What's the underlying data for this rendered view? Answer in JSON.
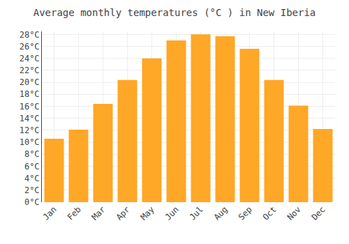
{
  "chart_data": {
    "type": "bar",
    "title": "Average monthly temperatures (°C ) in New Iberia",
    "categories": [
      "Jan",
      "Feb",
      "Mar",
      "Apr",
      "May",
      "Jun",
      "Jul",
      "Aug",
      "Sep",
      "Oct",
      "Nov",
      "Dec"
    ],
    "values": [
      10.6,
      12.1,
      16.4,
      20.4,
      24.0,
      27.0,
      28.0,
      27.7,
      25.6,
      20.4,
      16.1,
      12.2
    ],
    "color": "#FFA726",
    "ylim": [
      0,
      28.5
    ],
    "yticks": [
      {
        "value": 0,
        "label": "0°C"
      },
      {
        "value": 2,
        "label": "2°C"
      },
      {
        "value": 4,
        "label": "4°C"
      },
      {
        "value": 6,
        "label": "6°C"
      },
      {
        "value": 8,
        "label": "8°C"
      },
      {
        "value": 10,
        "label": "10°C"
      },
      {
        "value": 12,
        "label": "12°C"
      },
      {
        "value": 14,
        "label": "14°C"
      },
      {
        "value": 16,
        "label": "16°C"
      },
      {
        "value": 18,
        "label": "18°C"
      },
      {
        "value": 20,
        "label": "20°C"
      },
      {
        "value": 22,
        "label": "22°C"
      },
      {
        "value": 24,
        "label": "24°C"
      },
      {
        "value": 26,
        "label": "26°C"
      },
      {
        "value": 28,
        "label": "28°C"
      }
    ],
    "grid": true
  }
}
